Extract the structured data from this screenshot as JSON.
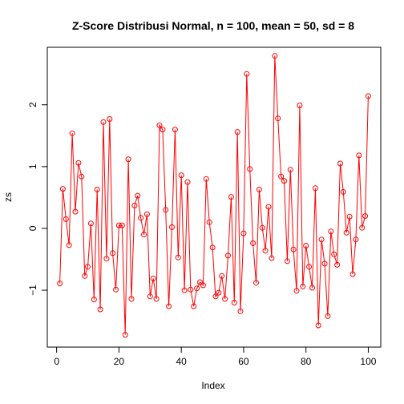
{
  "chart_data": {
    "type": "line",
    "title": "Z-Score Distribusi Normal, n = 100, mean = 50, sd = 8",
    "xlabel": "Index",
    "ylabel": "zs",
    "xlim": [
      -3,
      104
    ],
    "ylim": [
      -1.92,
      2.93
    ],
    "x_ticks": [
      0,
      20,
      40,
      60,
      80,
      100
    ],
    "y_ticks": [
      -1,
      0,
      1,
      2
    ],
    "grid": false,
    "color": "#ff0000",
    "x": [
      1,
      2,
      3,
      4,
      5,
      6,
      7,
      8,
      9,
      10,
      11,
      12,
      13,
      14,
      15,
      16,
      17,
      18,
      19,
      20,
      21,
      22,
      23,
      24,
      25,
      26,
      27,
      28,
      29,
      30,
      31,
      32,
      33,
      34,
      35,
      36,
      37,
      38,
      39,
      40,
      41,
      42,
      43,
      44,
      45,
      46,
      47,
      48,
      49,
      50,
      51,
      52,
      53,
      54,
      55,
      56,
      57,
      58,
      59,
      60,
      61,
      62,
      63,
      64,
      65,
      66,
      67,
      68,
      69,
      70,
      71,
      72,
      73,
      74,
      75,
      76,
      77,
      78,
      79,
      80,
      81,
      82,
      83,
      84,
      85,
      86,
      87,
      88,
      89,
      90,
      91,
      92,
      93,
      94,
      95,
      96,
      97,
      98,
      99,
      100
    ],
    "values": [
      -0.89,
      0.64,
      0.15,
      -0.27,
      1.54,
      0.27,
      1.06,
      0.84,
      -0.77,
      -0.62,
      0.08,
      -1.15,
      0.63,
      -1.31,
      1.72,
      -0.49,
      1.77,
      -0.4,
      -0.99,
      0.05,
      0.05,
      -1.72,
      1.12,
      -1.14,
      0.37,
      0.53,
      0.17,
      -0.1,
      0.23,
      -1.1,
      -0.81,
      -1.14,
      1.67,
      1.6,
      0.3,
      -1.26,
      0.02,
      1.6,
      -0.47,
      0.86,
      -1.0,
      0.75,
      -0.99,
      -1.26,
      -0.97,
      -0.87,
      -0.92,
      0.8,
      0.1,
      -0.31,
      -1.1,
      -1.04,
      -0.77,
      -1.14,
      -0.44,
      0.51,
      -1.2,
      1.56,
      -1.34,
      -0.08,
      2.5,
      0.96,
      -0.24,
      -0.88,
      0.63,
      0.01,
      -0.36,
      0.35,
      -0.48,
      2.79,
      1.78,
      0.84,
      0.77,
      -0.53,
      0.95,
      -0.34,
      -1.01,
      1.99,
      -0.94,
      -0.28,
      -0.62,
      -0.96,
      0.65,
      -1.57,
      -0.18,
      -0.57,
      -1.42,
      -0.05,
      -0.42,
      -0.59,
      1.05,
      0.59,
      -0.07,
      0.19,
      -0.74,
      -0.18,
      1.18,
      0.01,
      0.2,
      2.14
    ]
  }
}
